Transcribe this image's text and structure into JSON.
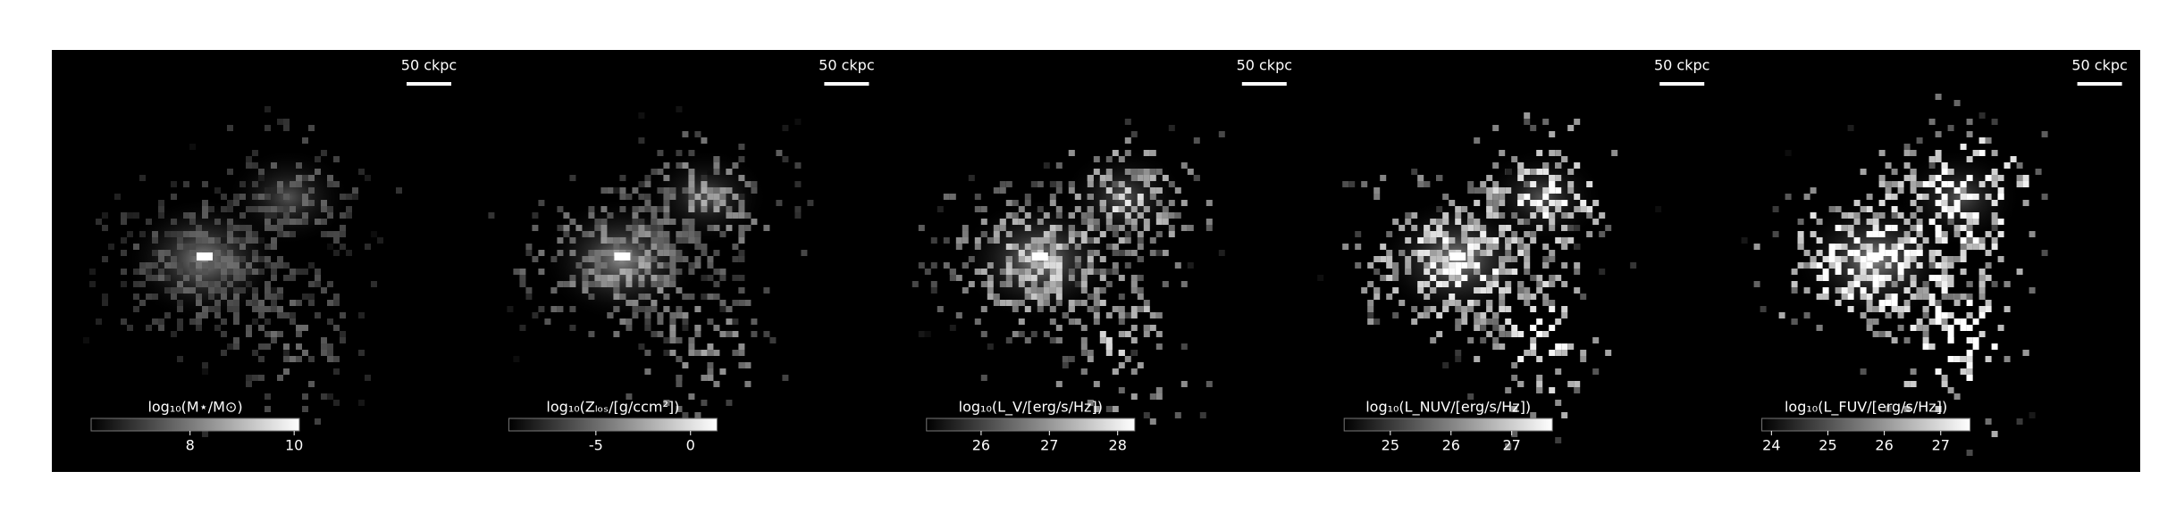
{
  "panels": [
    {
      "scale_bar": "50 ckpc",
      "colorbar": {
        "label": "log₁₀(M⋆/M⊙)",
        "clim": [
          6.1,
          10.1
        ],
        "ticks": [
          8,
          10
        ]
      }
    },
    {
      "scale_bar": "50 ckpc",
      "colorbar": {
        "label": "log₁₀(Zₗₒₛ/[g/ccm²])",
        "clim": [
          -9.6,
          1.4
        ],
        "ticks": [
          -5,
          0
        ]
      }
    },
    {
      "scale_bar": "50 ckpc",
      "colorbar": {
        "label": "log₁₀(L_V/[erg/s/Hz])",
        "clim": [
          25.2,
          28.25
        ],
        "ticks": [
          26,
          27,
          28
        ]
      }
    },
    {
      "scale_bar": "50 ckpc",
      "colorbar": {
        "label": "log₁₀(L_NUV/[erg/s/Hz])",
        "clim": [
          24.24,
          27.67
        ],
        "ticks": [
          25,
          26,
          27
        ]
      }
    },
    {
      "scale_bar": "50 ckpc",
      "colorbar": {
        "label": "log₁₀(L_FUV/[erg/s/Hz])",
        "clim": [
          23.83,
          27.52
        ],
        "ticks": [
          24,
          25,
          26,
          27
        ]
      }
    }
  ]
}
